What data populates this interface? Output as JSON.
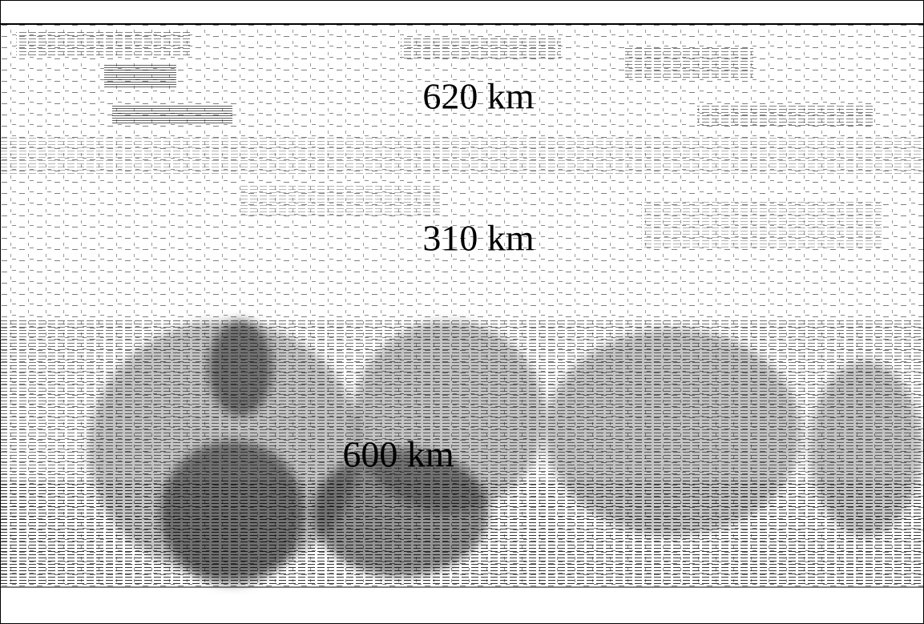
{
  "labels": [
    "620 km",
    "310 km",
    "600 km"
  ]
}
